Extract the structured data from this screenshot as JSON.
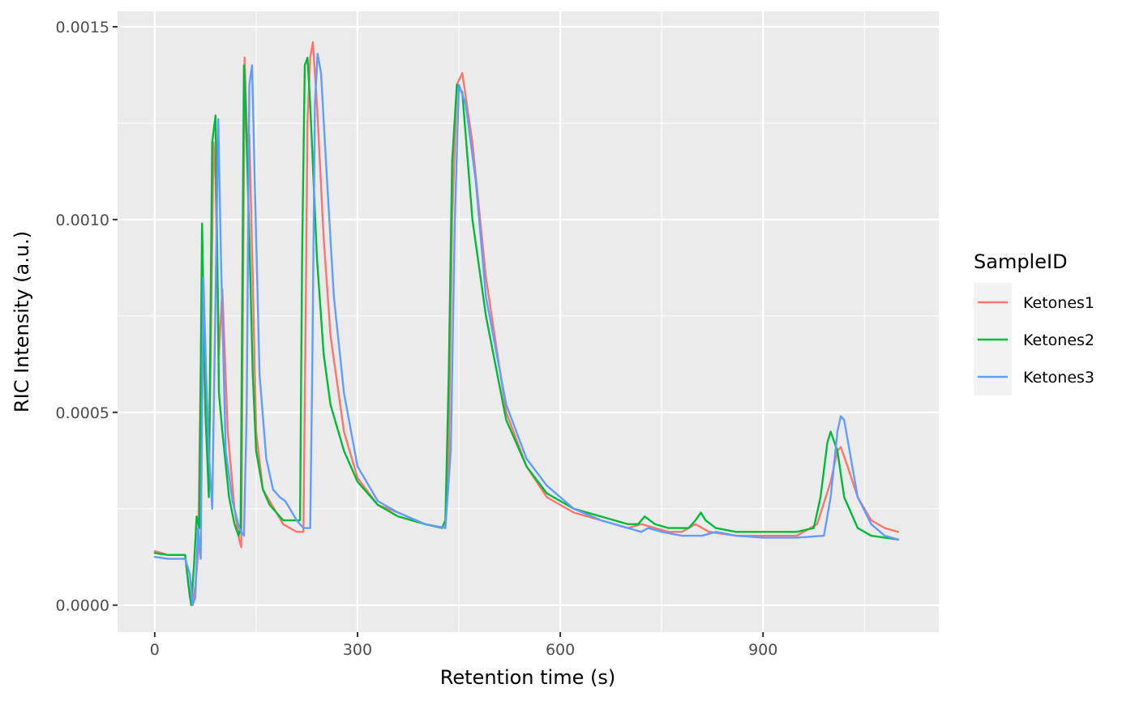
{
  "chart_data": {
    "type": "line",
    "xlabel": "Retention time (s)",
    "ylabel": "RIC Intensity (a.u.)",
    "xlim": [
      -55,
      1160
    ],
    "ylim": [
      -7e-05,
      0.00154
    ],
    "xticks": [
      0,
      300,
      600,
      900
    ],
    "xtick_labels": [
      "0",
      "300",
      "600",
      "900"
    ],
    "yticks": [
      0.0,
      0.0005,
      0.001,
      0.0015
    ],
    "ytick_labels": [
      "0.0000",
      "0.0005",
      "0.0010",
      "0.0015"
    ],
    "grid": true,
    "legend": {
      "title": "SampleID",
      "position": "right"
    },
    "series": [
      {
        "name": "Ketones1",
        "color": "#F8766D",
        "x": [
          0,
          20,
          45,
          52,
          56,
          60,
          64,
          70,
          75,
          80,
          87,
          90,
          95,
          100,
          108,
          118,
          125,
          128,
          133,
          137,
          140,
          145,
          150,
          160,
          170,
          180,
          190,
          200,
          210,
          220,
          223,
          226,
          230,
          234,
          240,
          250,
          260,
          280,
          300,
          330,
          360,
          400,
          430,
          435,
          440,
          447,
          455,
          470,
          490,
          520,
          550,
          580,
          620,
          660,
          700,
          720,
          740,
          760,
          780,
          800,
          810,
          820,
          860,
          900,
          950,
          980,
          1000,
          1010,
          1015,
          1025,
          1040,
          1060,
          1080,
          1100
        ],
        "y": [
          0.00014,
          0.00013,
          0.00013,
          2e-05,
          0.0,
          5e-05,
          0.00013,
          0.00085,
          0.0005,
          0.0003,
          0.0012,
          0.0011,
          0.00065,
          0.00082,
          0.00045,
          0.00025,
          0.00017,
          0.00015,
          0.00142,
          0.0012,
          0.00122,
          0.00085,
          0.00045,
          0.0003,
          0.00027,
          0.00024,
          0.00021,
          0.0002,
          0.00019,
          0.00019,
          0.0007,
          0.00125,
          0.00142,
          0.00146,
          0.0013,
          0.00095,
          0.0007,
          0.00045,
          0.00033,
          0.00026,
          0.00024,
          0.00021,
          0.0002,
          0.0004,
          0.001,
          0.00135,
          0.00138,
          0.0012,
          0.00085,
          0.0005,
          0.00036,
          0.00028,
          0.00024,
          0.00022,
          0.0002,
          0.00021,
          0.0002,
          0.00019,
          0.00019,
          0.00021,
          0.0002,
          0.00019,
          0.00018,
          0.00018,
          0.00018,
          0.00021,
          0.00032,
          0.0004,
          0.00041,
          0.00036,
          0.00028,
          0.00022,
          0.0002,
          0.00019
        ]
      },
      {
        "name": "Ketones2",
        "color": "#00BA38",
        "x": [
          0,
          20,
          45,
          50,
          54,
          58,
          62,
          66,
          70,
          75,
          80,
          85,
          90,
          95,
          100,
          110,
          118,
          124,
          127,
          132,
          136,
          140,
          145,
          150,
          160,
          170,
          180,
          190,
          200,
          210,
          215,
          218,
          222,
          226,
          230,
          240,
          250,
          260,
          280,
          300,
          330,
          360,
          400,
          425,
          430,
          435,
          440,
          447,
          455,
          470,
          490,
          520,
          550,
          580,
          620,
          660,
          700,
          715,
          725,
          740,
          760,
          790,
          800,
          808,
          815,
          830,
          860,
          900,
          950,
          975,
          985,
          995,
          1000,
          1010,
          1020,
          1040,
          1060,
          1080,
          1100
        ],
        "y": [
          0.000135,
          0.00013,
          0.00013,
          5e-05,
          0.0,
          0.0001,
          0.00023,
          0.0002,
          0.00099,
          0.0005,
          0.00028,
          0.0012,
          0.00127,
          0.00055,
          0.00045,
          0.00028,
          0.00021,
          0.00018,
          0.0002,
          0.0014,
          0.0012,
          0.00095,
          0.0006,
          0.0004,
          0.0003,
          0.00026,
          0.00024,
          0.00022,
          0.00022,
          0.00022,
          0.00022,
          0.0009,
          0.0014,
          0.00142,
          0.0013,
          0.0009,
          0.00065,
          0.00052,
          0.0004,
          0.00032,
          0.00026,
          0.00023,
          0.00021,
          0.0002,
          0.00022,
          0.0006,
          0.00115,
          0.00135,
          0.00133,
          0.001,
          0.00075,
          0.00048,
          0.00036,
          0.00029,
          0.00025,
          0.00023,
          0.00021,
          0.00021,
          0.00023,
          0.00021,
          0.0002,
          0.0002,
          0.00022,
          0.00024,
          0.00022,
          0.0002,
          0.00019,
          0.00019,
          0.00019,
          0.0002,
          0.00028,
          0.00042,
          0.00045,
          0.0004,
          0.00028,
          0.0002,
          0.00018,
          0.000175,
          0.00017
        ]
      },
      {
        "name": "Ketones3",
        "color": "#619CFF",
        "x": [
          0,
          20,
          45,
          52,
          56,
          60,
          64,
          68,
          72,
          76,
          80,
          85,
          90,
          94,
          98,
          105,
          115,
          125,
          132,
          136,
          140,
          144,
          148,
          155,
          165,
          175,
          185,
          193,
          200,
          210,
          220,
          230,
          233,
          237,
          241,
          246,
          255,
          265,
          280,
          300,
          330,
          360,
          400,
          430,
          438,
          444,
          450,
          460,
          475,
          490,
          520,
          550,
          580,
          620,
          660,
          700,
          720,
          730,
          750,
          780,
          810,
          830,
          860,
          900,
          950,
          990,
          1000,
          1010,
          1015,
          1020,
          1030,
          1040,
          1060,
          1080,
          1100
        ],
        "y": [
          0.000125,
          0.00012,
          0.00012,
          8e-05,
          0.0,
          2e-05,
          0.0002,
          0.00012,
          0.00085,
          0.0006,
          0.0004,
          0.00025,
          0.0008,
          0.00126,
          0.0009,
          0.0004,
          0.00027,
          0.0002,
          0.00018,
          0.0005,
          0.00135,
          0.0014,
          0.0011,
          0.0006,
          0.00038,
          0.0003,
          0.00028,
          0.00027,
          0.00025,
          0.00022,
          0.0002,
          0.0002,
          0.0006,
          0.0013,
          0.00143,
          0.00138,
          0.0011,
          0.0008,
          0.00055,
          0.00036,
          0.00027,
          0.00024,
          0.00021,
          0.0002,
          0.0004,
          0.001,
          0.00135,
          0.0013,
          0.0011,
          0.0008,
          0.00052,
          0.00038,
          0.00031,
          0.00025,
          0.00022,
          0.0002,
          0.00019,
          0.0002,
          0.00019,
          0.00018,
          0.00018,
          0.00019,
          0.00018,
          0.000175,
          0.000175,
          0.00018,
          0.00028,
          0.00045,
          0.00049,
          0.00048,
          0.00038,
          0.00028,
          0.00021,
          0.00018,
          0.00017
        ]
      }
    ]
  }
}
